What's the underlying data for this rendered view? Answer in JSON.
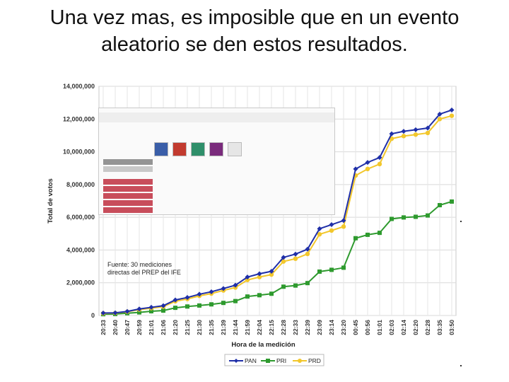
{
  "title_lines": [
    "Una vez mas, es imposible que en un evento",
    "aleatorio se den estos resultados."
  ],
  "source_note": [
    "Fuente: 30 mediciones",
    "directas del PREP del IFE"
  ],
  "colors": {
    "PAN": "#1f2fa8",
    "PRI": "#2e9a2e",
    "PRD": "#f2c72c"
  },
  "chart_data": {
    "type": "line",
    "title": "",
    "xlabel": "Hora de la medición",
    "ylabel": "Total de votos",
    "ylim": [
      0,
      14000000
    ],
    "yticks": [
      0,
      2000000,
      4000000,
      6000000,
      8000000,
      10000000,
      12000000,
      14000000
    ],
    "ytick_labels": [
      "0",
      "2,000,000",
      "4,000,000",
      "6,000,000",
      "8,000,000",
      "10,000,000",
      "12,000,000",
      "14,000,000"
    ],
    "grid": true,
    "legend_position": "bottom",
    "categories": [
      "20:33",
      "20:40",
      "20:47",
      "20:59",
      "21:01",
      "21:06",
      "21:20",
      "21:25",
      "21:30",
      "21:35",
      "21:39",
      "21:44",
      "21:59",
      "22:04",
      "22:15",
      "22:28",
      "22:33",
      "22:39",
      "23:09",
      "23:14",
      "23:20",
      "00:45",
      "00:56",
      "01:01",
      "02:03",
      "02:14",
      "02:20",
      "02:28",
      "03:35",
      "03:50"
    ],
    "series": [
      {
        "name": "PAN",
        "values": [
          150000,
          160000,
          250000,
          400000,
          500000,
          600000,
          950000,
          1100000,
          1300000,
          1450000,
          1650000,
          1850000,
          2350000,
          2550000,
          2700000,
          3550000,
          3750000,
          4050000,
          5300000,
          5550000,
          5800000,
          8950000,
          9350000,
          9650000,
          11100000,
          11250000,
          11350000,
          11450000,
          12300000,
          12550000
        ]
      },
      {
        "name": "PRI",
        "values": [
          80000,
          90000,
          140000,
          190000,
          260000,
          300000,
          470000,
          550000,
          610000,
          680000,
          770000,
          880000,
          1160000,
          1240000,
          1330000,
          1760000,
          1830000,
          1980000,
          2680000,
          2790000,
          2920000,
          4720000,
          4930000,
          5050000,
          5900000,
          5990000,
          6030000,
          6110000,
          6740000,
          6960000
        ]
      },
      {
        "name": "PRD",
        "values": [
          130000,
          150000,
          230000,
          360000,
          450000,
          540000,
          870000,
          1010000,
          1200000,
          1340000,
          1530000,
          1710000,
          2170000,
          2350000,
          2500000,
          3300000,
          3470000,
          3760000,
          4960000,
          5190000,
          5430000,
          8550000,
          8950000,
          9250000,
          10800000,
          10960000,
          11050000,
          11150000,
          12000000,
          12200000
        ]
      }
    ]
  }
}
